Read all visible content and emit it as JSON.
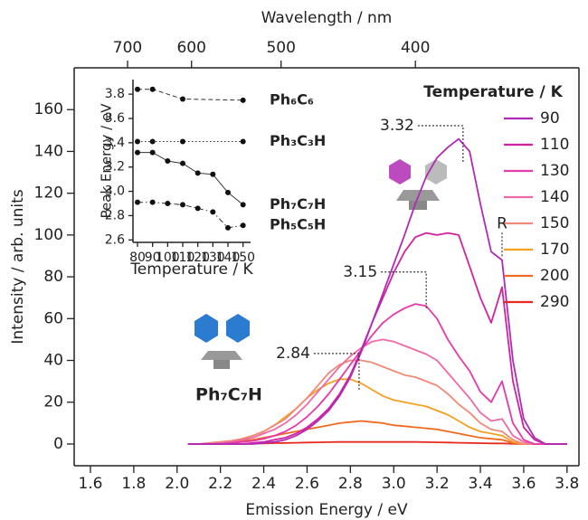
{
  "chart_data": [
    {
      "type": "line",
      "x_label": "Emission Energy / eV",
      "y_label": "Intensity / arb. units",
      "x2_label": "Wavelength / nm",
      "x2ticks": [
        700,
        600,
        500,
        400
      ],
      "xlim": [
        1.525,
        3.855
      ],
      "ylim": [
        -10.4,
        180
      ],
      "xticks": [
        1.6,
        1.8,
        {
          "value": 2,
          "label": "2.0"
        },
        2.2,
        2.4,
        2.6,
        2.8,
        {
          "value": 3,
          "label": "3.0"
        },
        3.2,
        3.4,
        3.6,
        3.8
      ],
      "yticks": [
        0,
        20,
        40,
        60,
        80,
        100,
        120,
        140,
        160
      ],
      "legend_title": "Temperature / K",
      "legend": "right",
      "x": [
        2.05,
        2.1,
        2.15,
        2.2,
        2.25,
        2.3,
        2.35,
        2.4,
        2.45,
        2.5,
        2.55,
        2.6,
        2.65,
        2.7,
        2.75,
        2.8,
        2.85,
        2.9,
        2.95,
        3.0,
        3.05,
        3.1,
        3.15,
        3.2,
        3.25,
        3.3,
        3.35,
        3.4,
        3.45,
        3.5,
        3.55,
        3.6,
        3.65,
        3.7,
        3.75,
        3.8
      ],
      "series": [
        {
          "name": "90",
          "color": "#b02bb5",
          "values": [
            0,
            0,
            0,
            0,
            0,
            0,
            0,
            0.5,
            1,
            2,
            4,
            7,
            11,
            16,
            23,
            32,
            44,
            58,
            72,
            86,
            100,
            115,
            128,
            137,
            142,
            146,
            140,
            115,
            92,
            88,
            40,
            12,
            3,
            0,
            0,
            0
          ]
        },
        {
          "name": "110",
          "color": "#d0219f",
          "values": [
            0,
            0,
            0,
            0,
            0,
            0,
            0.5,
            1,
            2,
            3,
            5,
            8,
            12,
            17,
            24,
            33,
            45,
            58,
            70,
            82,
            92,
            99,
            101,
            100,
            101,
            100,
            85,
            70,
            58,
            75,
            30,
            8,
            2,
            0,
            0,
            0
          ]
        },
        {
          "name": "130",
          "color": "#e53aa9",
          "values": [
            0,
            0,
            0,
            0,
            0.5,
            1,
            1.5,
            2.5,
            4,
            6,
            9,
            13,
            18,
            24,
            31,
            38,
            45,
            52,
            58,
            62,
            65,
            67,
            66,
            60,
            50,
            42,
            35,
            25,
            20,
            30,
            10,
            2,
            0,
            0,
            0,
            0
          ]
        },
        {
          "name": "140",
          "color": "#ee6aa6",
          "values": [
            0,
            0,
            0,
            0.5,
            1,
            2,
            3,
            5,
            7,
            10,
            14,
            19,
            25,
            31,
            37,
            42,
            46,
            49,
            50,
            49,
            47,
            45,
            43,
            40,
            34,
            28,
            22,
            15,
            11,
            12,
            4,
            1,
            0,
            0,
            0,
            0
          ]
        },
        {
          "name": "150",
          "color": "#f08a78",
          "values": [
            0,
            0,
            0.5,
            1,
            1.5,
            2.5,
            4,
            6,
            9,
            12,
            17,
            22,
            28,
            34,
            38,
            40,
            40,
            39,
            37,
            35,
            33,
            32,
            30,
            28,
            24,
            19,
            15,
            10,
            7,
            6,
            2,
            0,
            0,
            0,
            0,
            0
          ]
        },
        {
          "name": "170",
          "color": "#f5a020",
          "values": [
            0,
            0,
            0.5,
            1,
            1.5,
            2.5,
            4,
            6,
            9,
            13,
            17,
            22,
            26,
            29,
            31,
            31,
            29,
            26,
            23,
            21,
            20,
            19,
            18,
            16,
            14,
            11,
            8,
            6,
            5,
            4,
            1,
            0,
            0,
            0,
            0,
            0
          ]
        },
        {
          "name": "200",
          "color": "#f06a20",
          "values": [
            0,
            0,
            0.3,
            0.5,
            1,
            1.5,
            2,
            3,
            4,
            5,
            6,
            7,
            8,
            9,
            10,
            10.5,
            11,
            10.5,
            10,
            9,
            8.5,
            8,
            7.5,
            7,
            6,
            5,
            4,
            3,
            2.5,
            2,
            0.5,
            0,
            0,
            0,
            0,
            0
          ]
        },
        {
          "name": "290",
          "color": "#e82a1e",
          "values": [
            0,
            0,
            0,
            0,
            0,
            0,
            0.2,
            0.3,
            0.4,
            0.5,
            0.6,
            0.7,
            0.8,
            0.9,
            1,
            1,
            1,
            1,
            1,
            1,
            1,
            1,
            0.9,
            0.8,
            0.7,
            0.6,
            0.5,
            0.4,
            0.3,
            0.3,
            0.1,
            0,
            0,
            0,
            0,
            0
          ]
        }
      ],
      "annotations": [
        {
          "text": "3.32",
          "x": 3.32,
          "y": 135,
          "leader": "elbow"
        },
        {
          "text": "3.15",
          "x": 3.15,
          "y": 65,
          "leader": "elbow"
        },
        {
          "text": "2.84",
          "x": 2.84,
          "y": 26,
          "leader": "elbow"
        },
        {
          "text": "R",
          "x": 3.5,
          "y": 89,
          "leader": "vertical"
        }
      ],
      "molecule_label": "Ph₇C₇H"
    },
    {
      "type": "line",
      "x_label": "Temperature / K",
      "y_label": "Peak Energy / eV",
      "xlim": [
        77,
        155
      ],
      "ylim": [
        2.58,
        3.92
      ],
      "xticks": [
        80,
        90,
        100,
        110,
        120,
        130,
        140,
        150
      ],
      "yticks": [
        2.6,
        2.8,
        {
          "value": 3,
          "label": "3.0"
        },
        3.2,
        3.4,
        3.6,
        3.8
      ],
      "series": [
        {
          "name": "Ph₆C₆",
          "style": "dashed",
          "color": "#333333",
          "x": [
            80,
            90,
            110,
            150
          ],
          "values": [
            3.84,
            3.84,
            3.76,
            3.75
          ]
        },
        {
          "name": "Ph₃C₃H",
          "style": "dotted",
          "color": "#333333",
          "x": [
            80,
            90,
            110,
            150
          ],
          "values": [
            3.41,
            3.41,
            3.41,
            3.41
          ]
        },
        {
          "name": "Ph₇C₇H",
          "style": "solid",
          "color": "#333333",
          "x": [
            80,
            90,
            100,
            110,
            120,
            130,
            140,
            150
          ],
          "values": [
            3.32,
            3.32,
            3.25,
            3.23,
            3.15,
            3.14,
            2.99,
            2.89
          ]
        },
        {
          "name": "Ph₅C₅H",
          "style": "dashdot",
          "color": "#333333",
          "x": [
            80,
            90,
            100,
            110,
            120,
            130,
            140,
            150
          ],
          "values": [
            2.91,
            2.91,
            2.9,
            2.89,
            2.86,
            2.83,
            2.7,
            2.72
          ]
        }
      ]
    }
  ]
}
